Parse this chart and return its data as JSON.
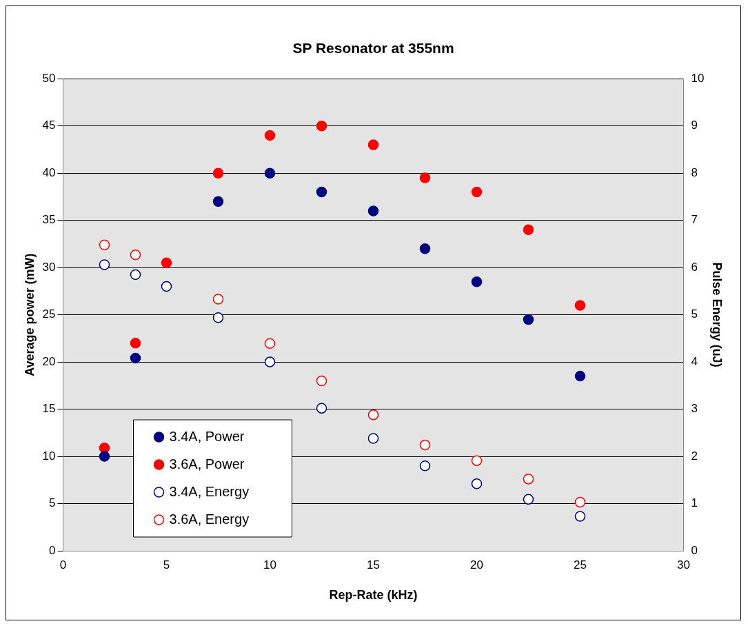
{
  "chart_data": {
    "type": "scatter",
    "title": "SP Resonator at 355nm",
    "xlabel": "Rep-Rate (kHz)",
    "ylabel": "Average power (mW)",
    "y2label": "Pulse Energy (uJ)",
    "xlim": [
      0,
      30
    ],
    "xticks": [
      0,
      5,
      10,
      15,
      20,
      25,
      30
    ],
    "ylim": [
      0,
      50
    ],
    "yticks": [
      0,
      5,
      10,
      15,
      20,
      25,
      30,
      35,
      40,
      45,
      50
    ],
    "y2lim": [
      0,
      10
    ],
    "y2ticks": [
      0,
      1,
      2,
      3,
      4,
      5,
      6,
      7,
      8,
      9,
      10
    ],
    "grid": "y",
    "legend": "bottom left",
    "marker": "circle",
    "series": [
      {
        "name": "3.4A, Power",
        "color": "#000080",
        "x": [
          2,
          3.5,
          7.5,
          10,
          12.5,
          15,
          17.5,
          20,
          22.5,
          25
        ],
        "values": [
          10,
          20.4,
          37,
          40,
          38,
          36,
          32,
          28.5,
          24.5,
          18.5
        ]
      },
      {
        "name": "3.6A, Power",
        "color": "#ff0000",
        "x": [
          2,
          3.5,
          5,
          7.5,
          10,
          12.5,
          15,
          17.5,
          20,
          22.5,
          25
        ],
        "values": [
          10.9,
          22,
          30.5,
          40,
          44,
          45,
          43,
          39.5,
          38,
          34,
          26
        ]
      },
      {
        "name": "3.4A, Energy",
        "color": "#000080",
        "axis": "y2",
        "x": [
          2,
          3.5,
          5,
          7.5,
          10,
          12.5,
          15,
          17.5,
          20,
          22.5,
          25
        ],
        "values": [
          6.06,
          5.85,
          5.6,
          4.94,
          4.0,
          3.02,
          2.38,
          1.8,
          1.42,
          1.09,
          0.73
        ]
      },
      {
        "name": "3.6A, Energy",
        "color": "#ff0000",
        "axis": "y2",
        "x": [
          2,
          3.5,
          7.5,
          10,
          12.5,
          15,
          17.5,
          20,
          22.5,
          25
        ],
        "values": [
          6.48,
          6.27,
          5.33,
          4.39,
          3.6,
          2.88,
          2.24,
          1.91,
          1.52,
          1.03
        ]
      }
    ]
  }
}
